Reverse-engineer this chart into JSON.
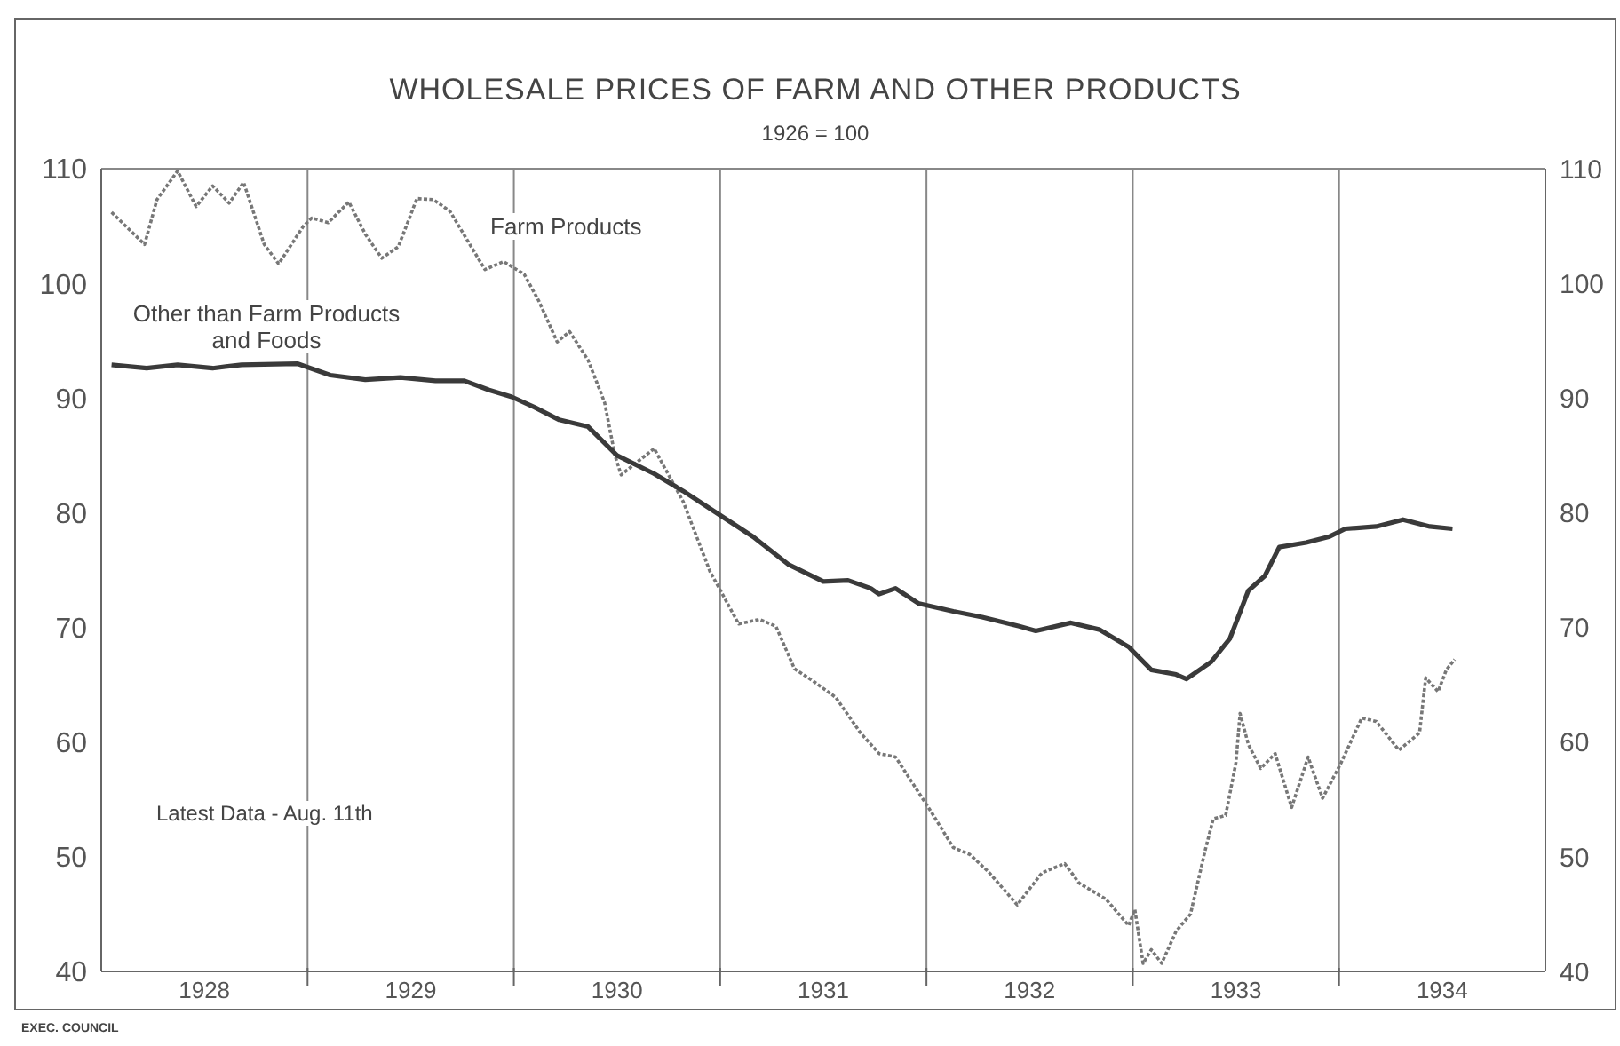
{
  "chart_data": {
    "type": "line",
    "title": "WHOLESALE PRICES OF FARM AND OTHER PRODUCTS",
    "subtitle": "1926 = 100",
    "annotations": [
      "Latest Data - Aug. 11th",
      "EXEC. COUNCIL"
    ],
    "series": [
      {
        "name": "Farm Products",
        "color": "#777777",
        "line_style": "dotted",
        "x": [
          1928.05,
          1928.21,
          1928.27,
          1928.37,
          1928.46,
          1928.54,
          1928.62,
          1928.69,
          1928.79,
          1928.86,
          1928.98,
          1929.02,
          1929.1,
          1929.2,
          1929.28,
          1929.36,
          1929.44,
          1929.53,
          1929.61,
          1929.69,
          1929.78,
          1929.86,
          1929.95,
          1930.05,
          1930.12,
          1930.21,
          1930.27,
          1930.36,
          1930.44,
          1930.49,
          1930.52,
          1930.68,
          1930.82,
          1930.95,
          1931.09,
          1931.19,
          1931.27,
          1931.36,
          1931.46,
          1931.56,
          1931.68,
          1931.77,
          1931.85,
          1932.02,
          1932.13,
          1932.21,
          1932.3,
          1932.44,
          1932.56,
          1932.67,
          1932.74,
          1932.87,
          1932.98,
          1933.01,
          1933.05,
          1933.09,
          1933.14,
          1933.21,
          1933.28,
          1933.35,
          1933.39,
          1933.45,
          1933.5,
          1933.52,
          1933.56,
          1933.62,
          1933.69,
          1933.77,
          1933.85,
          1933.92,
          1934.01,
          1934.11,
          1934.18,
          1934.29,
          1934.39,
          1934.42,
          1934.48,
          1934.52,
          1934.56
        ],
        "values": [
          106.2,
          103.4,
          107.3,
          109.8,
          106.7,
          108.5,
          107,
          108.8,
          103.4,
          101.7,
          105,
          105.7,
          105.3,
          107.1,
          104.3,
          102.2,
          103.2,
          107.4,
          107.3,
          106.3,
          103.6,
          101.2,
          101.9,
          100.8,
          98.5,
          94.9,
          95.8,
          93.3,
          89.6,
          85,
          83.3,
          85.6,
          81,
          74.9,
          70.3,
          70.7,
          70.1,
          66.4,
          65.2,
          63.9,
          60.8,
          59,
          58.7,
          54,
          50.8,
          50.2,
          48.7,
          45.8,
          48.6,
          49.4,
          47.7,
          46.3,
          44,
          45.4,
          40.7,
          41.9,
          40.7,
          43.5,
          45,
          50.5,
          53.3,
          53.6,
          58.2,
          62.5,
          59.8,
          57.7,
          59,
          54.3,
          58.7,
          55.1,
          58.2,
          62.1,
          61.8,
          59.3,
          60.8,
          65.6,
          64.4,
          66.3,
          67.2
        ]
      },
      {
        "name": "Other than Farm Products and Foods",
        "color": "#3a3a3a",
        "line_style": "solid",
        "x": [
          1928.05,
          1928.22,
          1928.37,
          1928.54,
          1928.68,
          1928.95,
          1929.11,
          1929.28,
          1929.45,
          1929.62,
          1929.76,
          1929.88,
          1929.99,
          1930.1,
          1930.22,
          1930.36,
          1930.5,
          1930.68,
          1930.82,
          1930.99,
          1931.16,
          1931.33,
          1931.5,
          1931.62,
          1931.73,
          1931.77,
          1931.85,
          1931.96,
          1932.13,
          1932.27,
          1932.45,
          1932.53,
          1932.7,
          1932.84,
          1932.98,
          1933.09,
          1933.21,
          1933.26,
          1933.38,
          1933.47,
          1933.56,
          1933.64,
          1933.71,
          1933.84,
          1933.95,
          1934.03,
          1934.18,
          1934.31,
          1934.44,
          1934.55
        ],
        "values": [
          92.9,
          92.6,
          92.9,
          92.6,
          92.9,
          93,
          92,
          91.6,
          91.8,
          91.5,
          91.5,
          90.7,
          90.1,
          89.2,
          88.1,
          87.5,
          85,
          83.4,
          81.9,
          79.9,
          77.9,
          75.5,
          74,
          74.1,
          73.4,
          72.9,
          73.4,
          72.1,
          71.4,
          70.9,
          70.1,
          69.7,
          70.4,
          69.8,
          68.3,
          66.3,
          65.9,
          65.5,
          67,
          69,
          73.2,
          74.5,
          77,
          77.4,
          77.9,
          78.6,
          78.8,
          79.4,
          78.8,
          78.6
        ]
      }
    ],
    "xlim": [
      1928,
      1935
    ],
    "xticks": [
      {
        "value": 1928.5,
        "label": "1928"
      },
      {
        "value": 1929,
        "label": null
      },
      {
        "value": 1929.5,
        "label": "1929"
      },
      {
        "value": 1930,
        "label": null
      },
      {
        "value": 1930.5,
        "label": "1930"
      },
      {
        "value": 1931,
        "label": null
      },
      {
        "value": 1931.5,
        "label": "1931"
      },
      {
        "value": 1932,
        "label": null
      },
      {
        "value": 1932.5,
        "label": "1932"
      },
      {
        "value": 1933,
        "label": null
      },
      {
        "value": 1933.5,
        "label": "1933"
      },
      {
        "value": 1934,
        "label": null
      },
      {
        "value": 1934.5,
        "label": "1934"
      }
    ],
    "ylim": [
      40,
      110
    ],
    "yticks": [
      40,
      50,
      60,
      70,
      80,
      90,
      100,
      110
    ],
    "y2lim": [
      40,
      110
    ],
    "y2ticks": [
      40,
      50,
      60,
      70,
      80,
      90,
      100,
      110
    ],
    "grid": true,
    "marker": "none"
  }
}
